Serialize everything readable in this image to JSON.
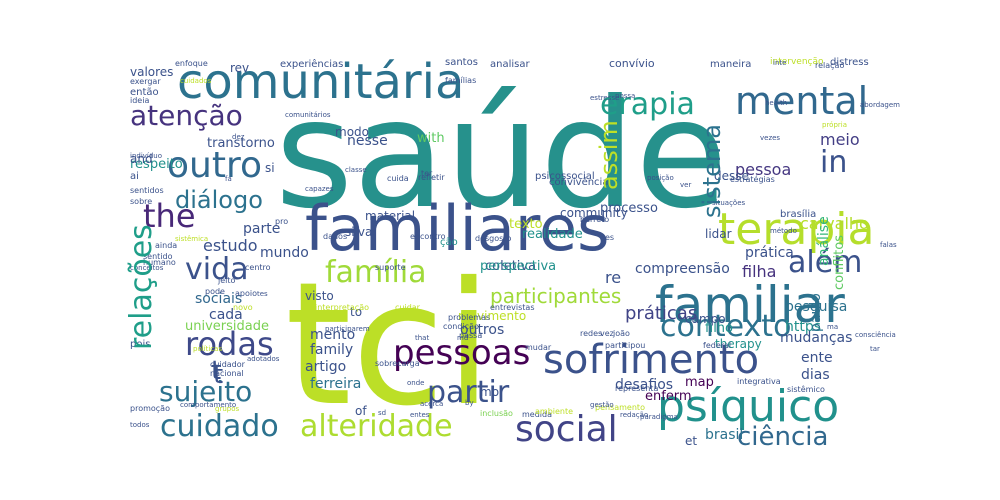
{
  "words": [
    {
      "text": "saúde",
      "color": "#26918c"
    },
    {
      "text": "tci",
      "color": "#bcdf27"
    },
    {
      "text": "familiares",
      "color": "#3b528b"
    },
    {
      "text": "comunitária",
      "color": "#2c728e"
    },
    {
      "text": "familiar",
      "color": "#2c728e"
    },
    {
      "text": "sofrimento",
      "color": "#3b528b"
    },
    {
      "text": "psíquico",
      "color": "#21918c"
    },
    {
      "text": "terapia",
      "color": "#b5de2b"
    },
    {
      "text": "mental",
      "color": "#31688e"
    },
    {
      "text": "contexto",
      "color": "#2c728e"
    },
    {
      "text": "pessoas",
      "color": "#440154"
    },
    {
      "text": "cuidado",
      "color": "#2c728e"
    },
    {
      "text": "alteridade",
      "color": "#addc30"
    },
    {
      "text": "social",
      "color": "#414487"
    },
    {
      "text": "atenção",
      "color": "#46337e"
    },
    {
      "text": "erapia",
      "color": "#1f9e89"
    },
    {
      "text": "outro",
      "color": "#31688e"
    },
    {
      "text": "the",
      "color": "#482878"
    },
    {
      "text": "vida",
      "color": "#3b528b"
    },
    {
      "text": "família",
      "color": "#a0da39"
    },
    {
      "text": "rodas",
      "color": "#3e4989"
    },
    {
      "text": "sujeito",
      "color": "#2c728e"
    },
    {
      "text": "partir",
      "color": "#3b528b"
    },
    {
      "text": "além",
      "color": "#3b528b"
    },
    {
      "text": "relações",
      "color": "#1f9e89"
    },
    {
      "text": "diálogo",
      "color": "#2c728e"
    },
    {
      "text": "assim",
      "color": "#bddf26"
    },
    {
      "text": "sistema",
      "color": "#2c728e"
    },
    {
      "text": "in",
      "color": "#3b528b"
    },
    {
      "text": "ciência",
      "color": "#31688e"
    },
    {
      "text": "meio",
      "color": "#433e85"
    },
    {
      "text": "análise",
      "color": "#35b779"
    },
    {
      "text": "conflitos",
      "color": "#5ec962"
    },
    {
      "text": "carvalho",
      "color": "#b5de2b"
    },
    {
      "text": "participantes",
      "color": "#a0da39"
    },
    {
      "text": "práticas",
      "color": "#414487"
    },
    {
      "text": "compreensão",
      "color": "#3b528b"
    },
    {
      "text": "pessoa",
      "color": "#453781"
    },
    {
      "text": "prática",
      "color": "#3b528b"
    },
    {
      "text": "filha",
      "color": "#46327e"
    },
    {
      "text": "pesquisa",
      "color": "#2c728e"
    },
    {
      "text": "paulo",
      "color": "#2c728e"
    },
    {
      "text": "estudo",
      "color": "#3b528b"
    },
    {
      "text": "mundo",
      "color": "#3b528b"
    },
    {
      "text": "parte",
      "color": "#3b528b"
    },
    {
      "text": "sociais",
      "color": "#31688e"
    },
    {
      "text": "cada",
      "color": "#3b528b"
    },
    {
      "text": "universidade",
      "color": "#7ad151"
    },
    {
      "text": "mento",
      "color": "#3b528b"
    },
    {
      "text": "family",
      "color": "#3b528b"
    },
    {
      "text": "artigo",
      "color": "#3b528b"
    },
    {
      "text": "ferreira",
      "color": "#2c728e"
    },
    {
      "text": "outros",
      "color": "#3b528b"
    },
    {
      "text": "desafios",
      "color": "#3b528b"
    },
    {
      "text": "mudanças",
      "color": "#3b528b"
    },
    {
      "text": "ente",
      "color": "#3b528b"
    },
    {
      "text": "dias",
      "color": "#3b528b"
    },
    {
      "text": "brasil",
      "color": "#2c728e"
    },
    {
      "text": "https",
      "color": "#21918c"
    },
    {
      "text": "map",
      "color": "#440154"
    },
    {
      "text": "enferm",
      "color": "#440154"
    },
    {
      "text": "therapy",
      "color": "#21918c"
    },
    {
      "text": "filho",
      "color": "#21918c"
    },
    {
      "text": "coletiva",
      "color": "#3b528b"
    },
    {
      "text": "re",
      "color": "#3b528b"
    },
    {
      "text": "respeito",
      "color": "#21918c"
    },
    {
      "text": "transtorno",
      "color": "#3b528b"
    },
    {
      "text": "nesse",
      "color": "#3b528b"
    },
    {
      "text": "with",
      "color": "#5ec962"
    },
    {
      "text": "modo",
      "color": "#3b528b"
    },
    {
      "text": "processo",
      "color": "#3b528b"
    },
    {
      "text": "community",
      "color": "#3b528b"
    },
    {
      "text": "material",
      "color": "#3b528b"
    },
    {
      "text": "lidar",
      "color": "#3b528b"
    },
    {
      "text": "valores",
      "color": "#3b528b"
    },
    {
      "text": "rev",
      "color": "#3b528b"
    },
    {
      "text": "convívio",
      "color": "#3b528b"
    },
    {
      "text": "santos",
      "color": "#3b528b"
    },
    {
      "text": "experiências",
      "color": "#3b528b"
    },
    {
      "text": "analisar",
      "color": "#3b528b"
    },
    {
      "text": "maneira",
      "color": "#3b528b"
    },
    {
      "text": "intervenção",
      "color": "#bddf26"
    },
    {
      "text": "distress",
      "color": "#3b528b"
    },
    {
      "text": "enfoque",
      "color": "#3b528b"
    },
    {
      "text": "perspectiva",
      "color": "#21918c"
    },
    {
      "text": "texto",
      "color": "#bddf26"
    },
    {
      "text": "movimento",
      "color": "#bddf26"
    },
    {
      "text": "realidade",
      "color": "#21918c"
    },
    {
      "text": "psicossocial",
      "color": "#3b528b"
    },
    {
      "text": "convivência",
      "color": "#3b528b"
    },
    {
      "text": "desse",
      "color": "#3b528b"
    },
    {
      "text": "silva",
      "color": "#3b528b"
    },
    {
      "text": "and",
      "color": "#3b528b"
    },
    {
      "text": "si",
      "color": "#3b528b"
    },
    {
      "text": "to",
      "color": "#3b528b"
    },
    {
      "text": "of",
      "color": "#3b528b"
    },
    {
      "text": "mo",
      "color": "#3b528b"
    },
    {
      "text": "et",
      "color": "#3b528b"
    },
    {
      "text": "ção",
      "color": "#21918c"
    },
    {
      "text": "t",
      "color": "#3b528b"
    },
    {
      "text": "visto",
      "color": "#3b528b"
    },
    {
      "text": "então",
      "color": "#3b528b"
    },
    {
      "text": "ai",
      "color": "#3b528b"
    },
    {
      "text": "sentidos",
      "color": "#3b528b"
    },
    {
      "text": "sobre",
      "color": "#3b528b"
    },
    {
      "text": "estratégias",
      "color": "#3b528b"
    },
    {
      "text": "brasília",
      "color": "#3b528b"
    },
    {
      "text": "campo",
      "color": "#3b528b"
    },
    {
      "text": "federal",
      "color": "#3b528b"
    },
    {
      "text": "integrativa",
      "color": "#3b528b"
    },
    {
      "text": "sistêmico",
      "color": "#3b528b"
    },
    {
      "text": "pois",
      "color": "#3b528b"
    },
    {
      "text": "nacional",
      "color": "#3b528b"
    },
    {
      "text": "cuidador",
      "color": "#3b528b"
    },
    {
      "text": "promoção",
      "color": "#3b528b"
    },
    {
      "text": "comportamento",
      "color": "#3b528b"
    },
    {
      "text": "todos",
      "color": "#3b528b"
    },
    {
      "text": "sobrecarga",
      "color": "#3b528b"
    },
    {
      "text": "inclusão",
      "color": "#7ad151"
    },
    {
      "text": "medida",
      "color": "#3b528b"
    },
    {
      "text": "ambiente",
      "color": "#bddf26"
    },
    {
      "text": "pensamento",
      "color": "#bddf26"
    },
    {
      "text": "redação",
      "color": "#3b528b"
    },
    {
      "text": "paradigma",
      "color": "#3b528b"
    },
    {
      "text": "representa",
      "color": "#3b528b"
    },
    {
      "text": "gestão",
      "color": "#3b528b"
    },
    {
      "text": "redes",
      "color": "#3b528b"
    },
    {
      "text": "vez",
      "color": "#3b528b"
    },
    {
      "text": "joão",
      "color": "#3b528b"
    },
    {
      "text": "participou",
      "color": "#3b528b"
    },
    {
      "text": "mudar",
      "color": "#3b528b"
    },
    {
      "text": "condição",
      "color": "#3b528b"
    },
    {
      "text": "passa",
      "color": "#3b528b"
    },
    {
      "text": "problemas",
      "color": "#3b528b"
    },
    {
      "text": "suporte",
      "color": "#3b528b"
    },
    {
      "text": "apoio",
      "color": "#3b528b"
    },
    {
      "text": "pode",
      "color": "#3b528b"
    },
    {
      "text": "novo",
      "color": "#bddf26"
    },
    {
      "text": "interpretação",
      "color": "#bddf26"
    },
    {
      "text": "cuidar",
      "color": "#bddf26"
    },
    {
      "text": "entrevistas",
      "color": "#3b528b"
    },
    {
      "text": "jeito",
      "color": "#3b528b"
    },
    {
      "text": "centro",
      "color": "#3b528b"
    },
    {
      "text": "dados",
      "color": "#3b528b"
    },
    {
      "text": "encontro",
      "color": "#3b528b"
    },
    {
      "text": "desgosto",
      "color": "#3b528b"
    },
    {
      "text": "barreto",
      "color": "#3b528b"
    },
    {
      "text": "ainda",
      "color": "#3b528b"
    },
    {
      "text": "sentido",
      "color": "#3b528b"
    },
    {
      "text": "humano",
      "color": "#3b528b"
    },
    {
      "text": "conceitos",
      "color": "#3b528b"
    },
    {
      "text": "capazes",
      "color": "#3b528b"
    },
    {
      "text": "classe",
      "color": "#3b528b"
    },
    {
      "text": "cuida",
      "color": "#3b528b"
    },
    {
      "text": "refletir",
      "color": "#3b528b"
    },
    {
      "text": "dez",
      "color": "#3b528b"
    },
    {
      "text": "comunitários",
      "color": "#3b528b"
    },
    {
      "text": "indivíduo",
      "color": "#3b528b"
    },
    {
      "text": "ideia",
      "color": "#3b528b"
    },
    {
      "text": "exergar",
      "color": "#3b528b"
    },
    {
      "text": "cuidados",
      "color": "#bddf26"
    },
    {
      "text": "estresse",
      "color": "#3b528b"
    },
    {
      "text": "possa",
      "color": "#3b528b"
    },
    {
      "text": "famílias",
      "color": "#3b528b"
    },
    {
      "text": "vezes",
      "color": "#3b528b"
    },
    {
      "text": "health",
      "color": "#3b528b"
    },
    {
      "text": "abordagem",
      "color": "#3b528b"
    },
    {
      "text": "própria",
      "color": "#bddf26"
    },
    {
      "text": "relação",
      "color": "#3b528b"
    },
    {
      "text": "método",
      "color": "#3b528b"
    },
    {
      "text": "situações",
      "color": "#3b528b"
    },
    {
      "text": "ver",
      "color": "#3b528b"
    },
    {
      "text": "posição",
      "color": "#3b528b"
    },
    {
      "text": "consciência",
      "color": "#3b528b"
    },
    {
      "text": "tar",
      "color": "#3b528b"
    },
    {
      "text": "falas",
      "color": "#3b528b"
    },
    {
      "text": "adotados",
      "color": "#3b528b"
    },
    {
      "text": "grupos",
      "color": "#bddf26"
    },
    {
      "text": "políticas",
      "color": "#bddf26"
    },
    {
      "text": "that",
      "color": "#3b528b"
    },
    {
      "text": "onde",
      "color": "#3b528b"
    },
    {
      "text": "acerca",
      "color": "#3b528b"
    },
    {
      "text": "by",
      "color": "#3b528b"
    },
    {
      "text": "md",
      "color": "#3b528b"
    },
    {
      "text": "participarem",
      "color": "#3b528b"
    },
    {
      "text": "sistêmica",
      "color": "#bddf26"
    },
    {
      "text": "fa",
      "color": "#3b528b"
    },
    {
      "text": "es",
      "color": "#3b528b"
    },
    {
      "text": "ter",
      "color": "#3b528b"
    },
    {
      "text": "pro",
      "color": "#3b528b"
    },
    {
      "text": "tes",
      "color": "#3b528b"
    },
    {
      "text": "ma",
      "color": "#3b528b"
    },
    {
      "text": "inte",
      "color": "#3b528b"
    },
    {
      "text": "sd",
      "color": "#3b528b"
    },
    {
      "text": "entes",
      "color": "#3b528b"
    }
  ]
}
